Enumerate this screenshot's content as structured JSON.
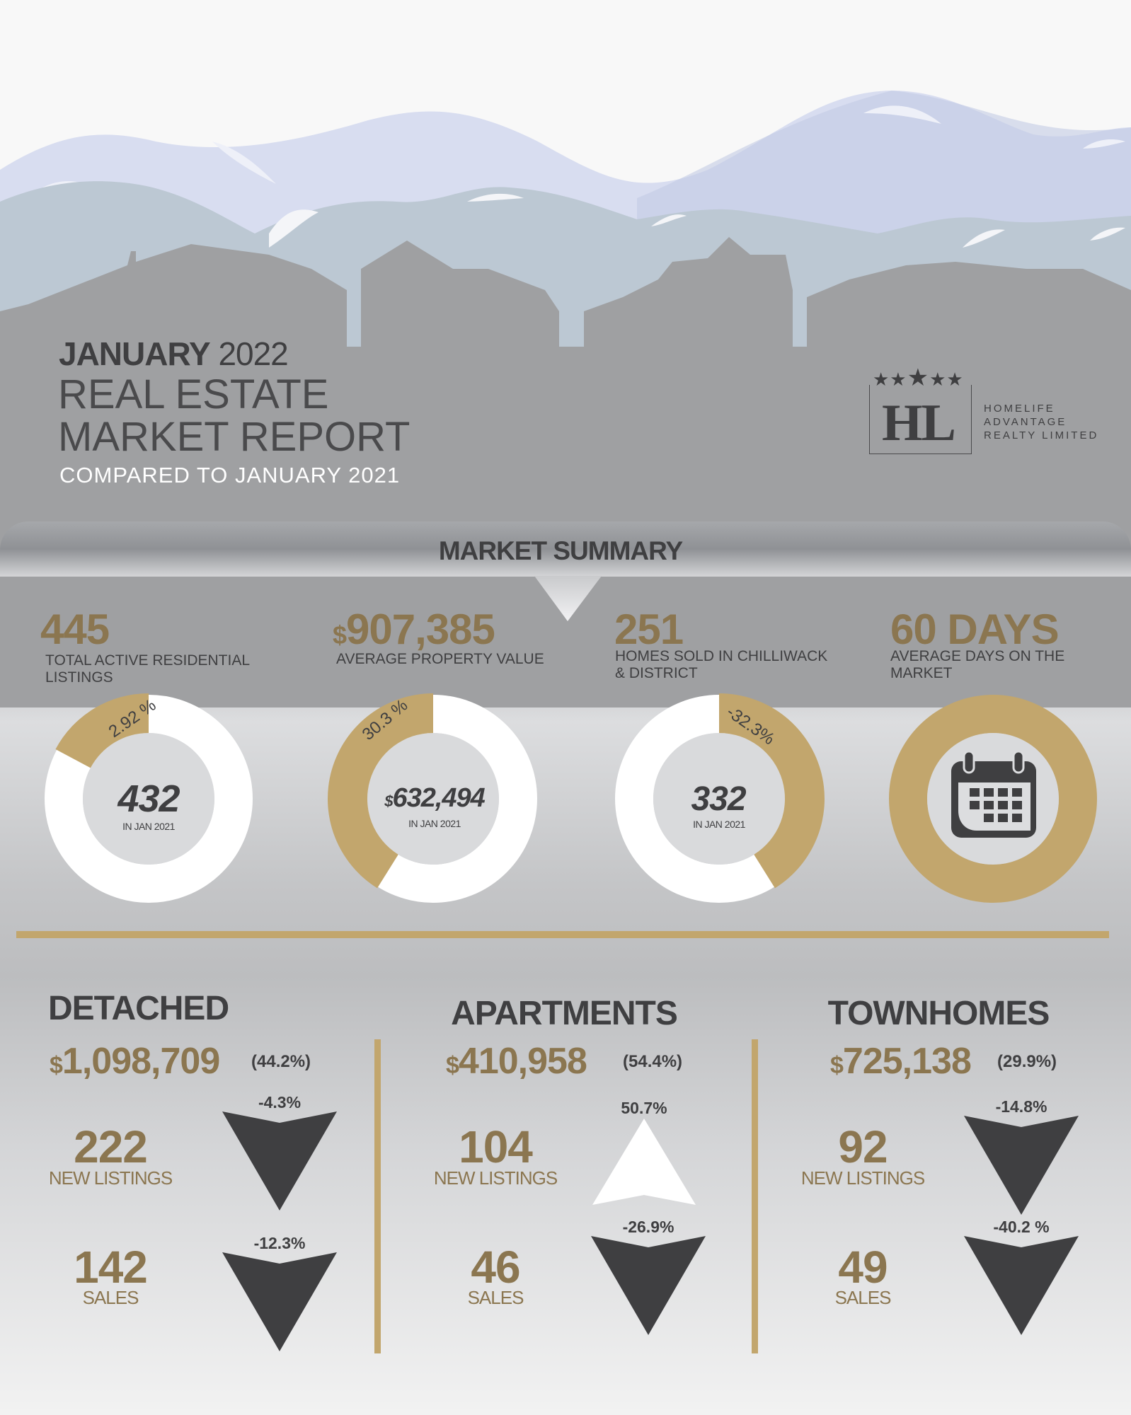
{
  "header": {
    "month": "JANUARY",
    "year": "2022",
    "title_line1": "REAL ESTATE",
    "title_line2": "MARKET REPORT",
    "subtitle": "COMPARED TO JANUARY 2021"
  },
  "logo": {
    "monogram": "HL",
    "line1": "HOMELIFE",
    "line2": "ADVANTAGE",
    "line3": "REALTY LIMITED",
    "stars": 5
  },
  "summary": {
    "title": "MARKET SUMMARY",
    "stats": [
      {
        "value": "445",
        "label_l1": "TOTAL ACTIVE RESIDENTIAL",
        "label_l2": "LISTINGS",
        "change": "2.92 %",
        "prev": "432",
        "prev_label": "IN JAN 2021"
      },
      {
        "currency": "$",
        "value": "907,385",
        "label_l1": "AVERAGE PROPERTY VALUE",
        "label_l2": "",
        "change": "30.3 %",
        "prev_currency": "$",
        "prev": "632,494",
        "prev_label": "IN JAN 2021"
      },
      {
        "value": "251",
        "label_l1": "HOMES SOLD IN CHILLIWACK",
        "label_l2": "& DISTRICT",
        "change": "-32.3%",
        "prev": "332",
        "prev_label": "IN JAN 2021"
      },
      {
        "value": "60 DAYS",
        "label_l1": "AVERAGE DAYS ON THE",
        "label_l2": "MARKET",
        "icon": "calendar-icon"
      }
    ]
  },
  "categories": [
    {
      "name": "DETACHED",
      "currency": "$",
      "price": "1,098,709",
      "price_change": "(44.2%)",
      "new_listings": "222",
      "new_listings_label": "NEW LISTINGS",
      "new_listings_change": "-4.3%",
      "new_listings_dir": "down",
      "sales": "142",
      "sales_label": "SALES",
      "sales_change": "-12.3%",
      "sales_dir": "down"
    },
    {
      "name": "APARTMENTS",
      "currency": "$",
      "price": "410,958",
      "price_change": "(54.4%)",
      "new_listings": "104",
      "new_listings_label": "NEW LISTINGS",
      "new_listings_change": "50.7%",
      "new_listings_dir": "up",
      "sales": "46",
      "sales_label": "SALES",
      "sales_change": "-26.9%",
      "sales_dir": "down"
    },
    {
      "name": "TOWNHOMES",
      "currency": "$",
      "price": "725,138",
      "price_change": "(29.9%)",
      "new_listings": "92",
      "new_listings_label": "NEW LISTINGS",
      "new_listings_change": "-14.8%",
      "new_listings_dir": "down",
      "sales": "49",
      "sales_label": "SALES",
      "sales_change": "-40.2 %",
      "sales_dir": "down"
    }
  ],
  "colors": {
    "gold": "#c2a66d",
    "gold_text": "#8b7650",
    "dark": "#3f3f41",
    "mountain_back": "#d8ddf0",
    "mountain_mid": "#bcc8d3",
    "houses": "#9fa0a2"
  }
}
